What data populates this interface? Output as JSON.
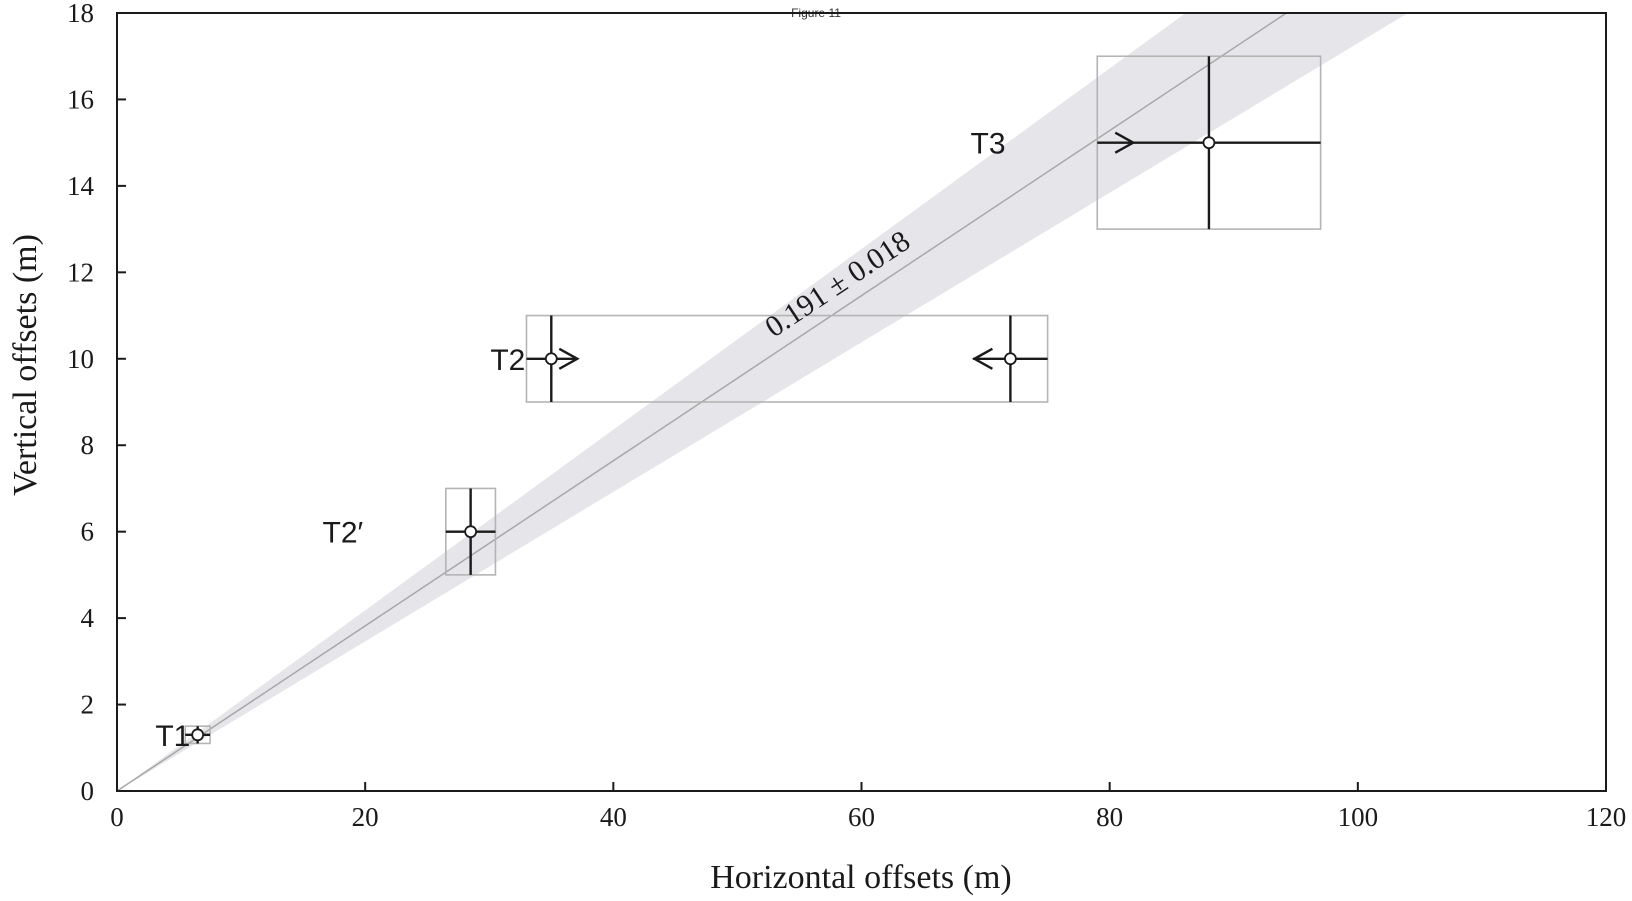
{
  "figure_title": "Figure 11",
  "chart_data": {
    "type": "scatter",
    "title": "",
    "xlabel": "Horizontal offsets (m)",
    "ylabel": "Vertical offsets (m)",
    "xlim": [
      0,
      120
    ],
    "ylim": [
      0,
      18
    ],
    "xticks": [
      0,
      20,
      40,
      60,
      80,
      100,
      120
    ],
    "yticks": [
      0,
      2,
      4,
      6,
      8,
      10,
      12,
      14,
      16,
      18
    ],
    "grid": false,
    "fit": {
      "label": "0.191 ± 0.018",
      "slope": 0.191,
      "slope_min": 0.173,
      "slope_max": 0.209
    },
    "terraces": [
      {
        "label": "T1",
        "box": {
          "x": [
            5.5,
            7.5
          ],
          "y": [
            1.1,
            1.5
          ]
        },
        "points": [
          {
            "x": 6.5,
            "y": 1.3,
            "xerr": 1.0,
            "yerr": 0.2,
            "arrow": "none"
          }
        ]
      },
      {
        "label": "T2′",
        "box": {
          "x": [
            26.5,
            30.5
          ],
          "y": [
            5.0,
            7.0
          ]
        },
        "points": [
          {
            "x": 28.5,
            "y": 6.0,
            "xerr": 2.0,
            "yerr": 1.0,
            "arrow": "none"
          }
        ]
      },
      {
        "label": "T2",
        "box": {
          "x": [
            33.0,
            75.0
          ],
          "y": [
            9.0,
            11.0
          ]
        },
        "points": [
          {
            "x": 35.0,
            "y": 10.0,
            "xerr": 2.0,
            "yerr": 1.0,
            "arrow": "right"
          },
          {
            "x": 72.0,
            "y": 10.0,
            "xerr": 3.0,
            "yerr": 1.0,
            "arrow": "left"
          }
        ]
      },
      {
        "label": "T3",
        "box": {
          "x": [
            79.0,
            97.0
          ],
          "y": [
            13.0,
            17.0
          ]
        },
        "points": [
          {
            "x": 88.0,
            "y": 15.0,
            "xerr": 9.0,
            "yerr": 2.0,
            "arrow": "right"
          }
        ]
      }
    ]
  }
}
